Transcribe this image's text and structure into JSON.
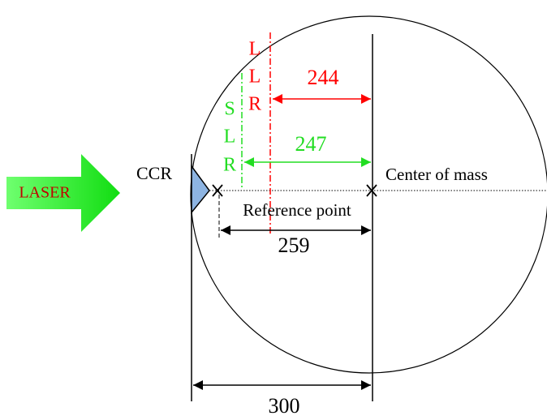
{
  "labels": {
    "ccr": "CCR",
    "laser": "LASER",
    "center_of_mass": "Center of mass",
    "reference_point": "Reference point",
    "llr": [
      "L",
      "L",
      "R"
    ],
    "slr": [
      "S",
      "L",
      "R"
    ],
    "dist_llr": "244",
    "dist_slr": "247",
    "dist_ref": "259",
    "dist_ccr": "300"
  }
}
